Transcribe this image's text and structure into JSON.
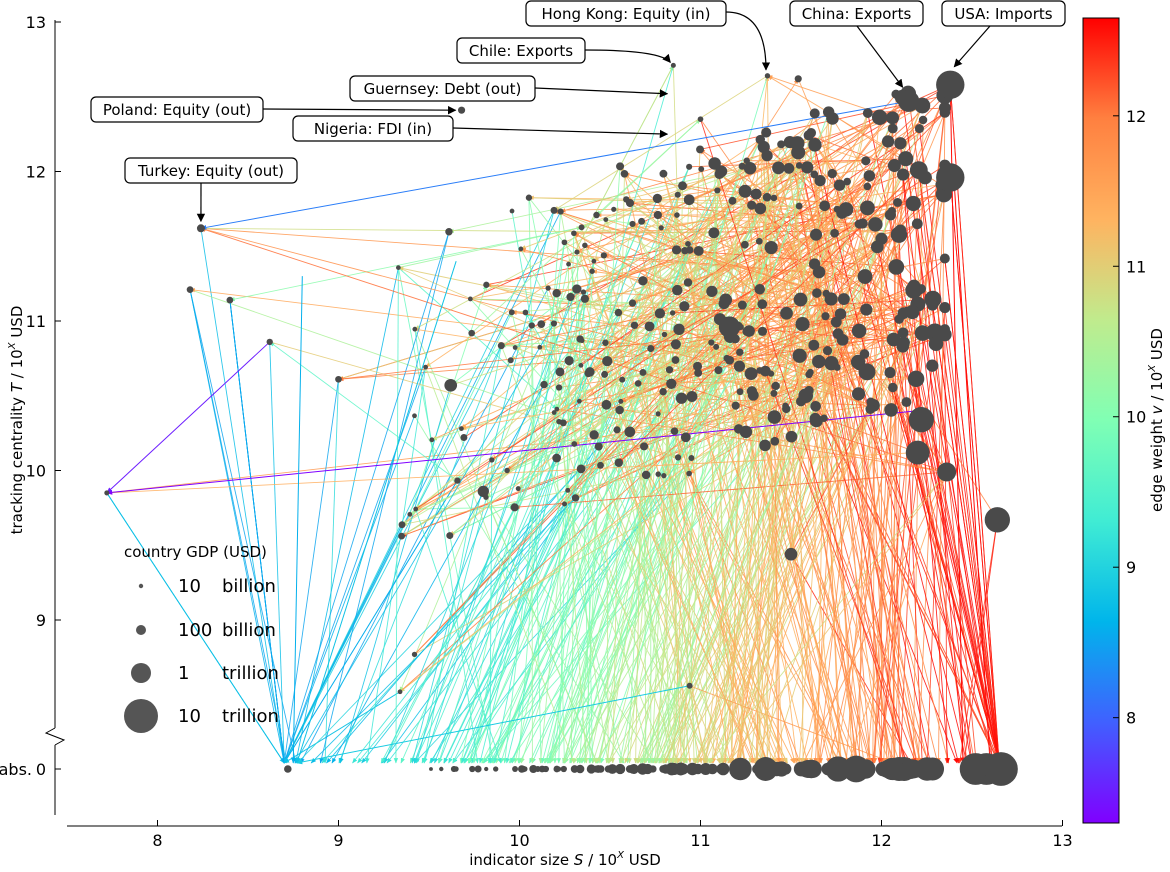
{
  "chart_data": {
    "type": "scatter",
    "x_axis": {
      "label_main": "indicator size ",
      "label_var": "S",
      "label_unit": " / 10",
      "label_exp": "X",
      "label_tail": " USD",
      "range": [
        7.5,
        13
      ],
      "ticks": [
        "8",
        "9",
        "10",
        "11",
        "12",
        "13"
      ]
    },
    "y_axis": {
      "label_main": "tracking centrality ",
      "label_var": "T",
      "label_unit": " / 10",
      "label_exp": "X",
      "label_tail": " USD",
      "range": [
        8.3,
        13
      ],
      "ticks": [
        "9",
        "10",
        "11",
        "12",
        "13"
      ],
      "abs_tick": "0",
      "abs_label": "abs."
    },
    "colorbar": {
      "label_main": "edge weight ",
      "label_var": "v",
      "label_unit": " / 10",
      "label_exp": "X",
      "label_tail": " USD",
      "range": [
        7.3,
        12.65
      ],
      "ticks": [
        "8",
        "9",
        "10",
        "11",
        "12"
      ]
    },
    "size_legend": {
      "title": "country GDP (USD)",
      "entries": [
        {
          "value": "10",
          "unit": "billion"
        },
        {
          "value": "100",
          "unit": "billion"
        },
        {
          "value": "1",
          "unit": "trillion"
        },
        {
          "value": "10",
          "unit": "trillion"
        }
      ]
    },
    "callouts": [
      {
        "label": "Hong Kong: Equity (in)",
        "x": 11.37,
        "y": 12.64
      },
      {
        "label": "China: Exports",
        "x": 12.15,
        "y": 12.47
      },
      {
        "label": "USA: Imports",
        "x": 12.38,
        "y": 12.58
      },
      {
        "label": "Chile: Exports",
        "x": 10.85,
        "y": 12.71
      },
      {
        "label": "Guernsey: Debt (out)",
        "x": 10.85,
        "y": 12.52
      },
      {
        "label": "Poland: Equity (out)",
        "x": 9.68,
        "y": 12.41
      },
      {
        "label": "Nigeria: FDI (in)",
        "x": 10.85,
        "y": 12.25
      },
      {
        "label": "Turkey: Equity (out)",
        "x": 8.24,
        "y": 11.62
      }
    ],
    "node_color": "#4a4a4a",
    "colormap": [
      "#8000ff",
      "#4060ff",
      "#00b5eb",
      "#40ecd4",
      "#80ffb4",
      "#c0eb8d",
      "#ffb360",
      "#ff8040",
      "#ff0000"
    ]
  }
}
